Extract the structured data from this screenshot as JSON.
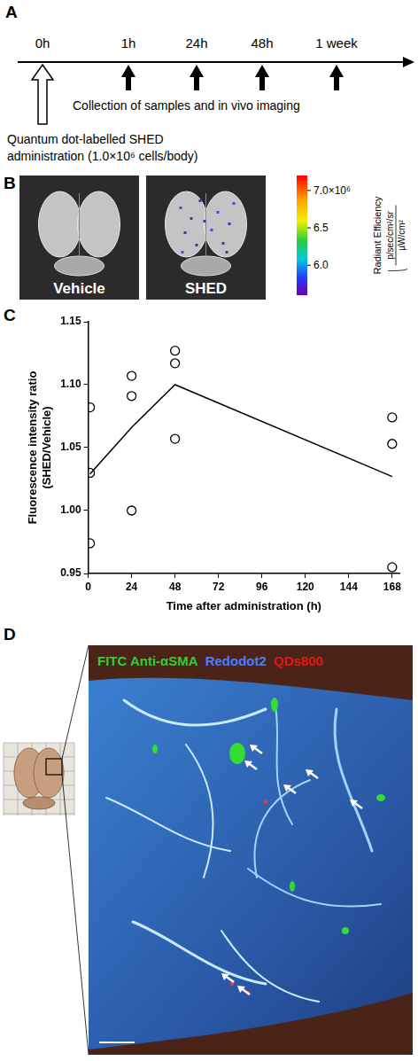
{
  "panel_A": {
    "letter": "A",
    "timeline": [
      "0h",
      "1h",
      "24h",
      "48h",
      "1 week"
    ],
    "collect_label": "Collection of samples and in vivo imaging",
    "admin_label": [
      "Quantum dot-labelled SHED",
      "administration (1.0×10⁶ cells/body)"
    ]
  },
  "panel_B": {
    "letter": "B",
    "images": [
      "Vehicle",
      "SHED"
    ],
    "colorbar": {
      "range": [
        5600000,
        7200000
      ],
      "ticks": [
        {
          "value": 7000000,
          "label": "7.0×10⁶"
        },
        {
          "value": 6500000,
          "label": "6.5"
        },
        {
          "value": 6000000,
          "label": "6.0"
        }
      ],
      "title": "Radiant Efficiency",
      "units_numerator": "p/sec/cm²/sr",
      "units_denominator": "µW/cm²"
    }
  },
  "panel_C": {
    "letter": "C"
  },
  "chart_data": {
    "type": "scatter",
    "x_label": "Time after administration (h)",
    "y_label": "Fluorescence intensity ratio (SHED/Vehicle)",
    "xlim": [
      0,
      172
    ],
    "xticks": [
      0,
      24,
      48,
      72,
      96,
      120,
      144,
      168
    ],
    "ylim": [
      0.95,
      1.15
    ],
    "yticks": [
      0.95,
      {
        "value": 1,
        "label": "1.00"
      },
      1.05,
      {
        "value": 1.1,
        "label": "1.10"
      },
      1.15
    ],
    "grid": false,
    "series": [
      {
        "type": "scatter",
        "marker": "circle",
        "color": "#000000",
        "x": [
          1,
          1,
          1,
          24,
          24,
          24,
          48,
          48,
          48,
          168,
          168,
          168
        ],
        "values": [
          1.082,
          1.03,
          0.974,
          1.107,
          1.091,
          1.0,
          1.127,
          1.117,
          1.057,
          1.074,
          1.053,
          0.955
        ]
      },
      {
        "type": "line",
        "color": "#000000",
        "x": [
          1,
          24,
          48,
          168
        ],
        "values": [
          1.029,
          1.066,
          1.1,
          1.027
        ]
      }
    ]
  },
  "panel_D": {
    "letter": "D",
    "stains": [
      {
        "text": "FITC Anti-αSMA",
        "color": "#33cc33"
      },
      {
        "text": "Redodot2",
        "color": "#4a7dff"
      },
      {
        "text": "QDs800",
        "color": "#e01515"
      }
    ]
  }
}
